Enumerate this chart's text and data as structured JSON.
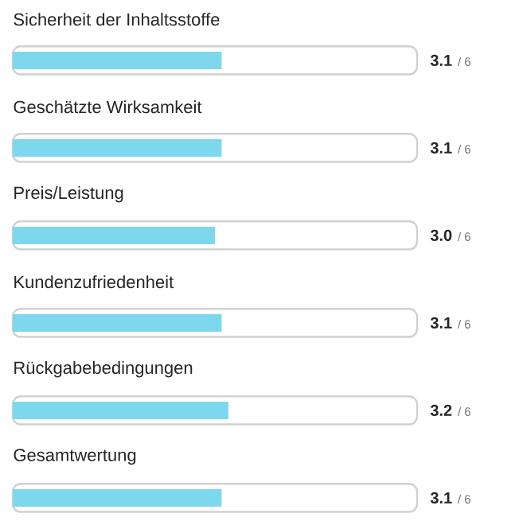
{
  "chart_data": {
    "type": "bar",
    "orientation": "horizontal",
    "categories": [
      "Sicherheit der Inhaltsstoffe",
      "Geschätzte Wirksamkeit",
      "Preis/Leistung",
      "Kundenzufriedenheit",
      "Rückgabebedingungen",
      "Gesamtwertung"
    ],
    "values": [
      3.1,
      3.1,
      3.0,
      3.1,
      3.2,
      3.1
    ],
    "value_labels": [
      "3.1",
      "3.1",
      "3.0",
      "3.1",
      "3.2",
      "3.1"
    ],
    "annotations": [
      "/ 6",
      "/ 6",
      "/ 6",
      "/ 6",
      "/ 6",
      "/ 6"
    ],
    "color": "#7dd8ed",
    "xlim": [
      0,
      6
    ]
  }
}
